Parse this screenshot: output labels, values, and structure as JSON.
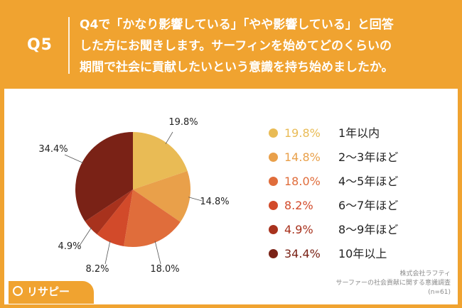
{
  "header": {
    "badge": "Q5",
    "question_lines": [
      "Q4で「かなり影響している」「やや影響している」と回答",
      "した方にお聞きします。サーフィンを始めてどのくらいの",
      "期間で社会に貢献したいという意識を持ち始めましたか。"
    ]
  },
  "chart_data": {
    "type": "pie",
    "start": "12 o'clock, clockwise",
    "slices": [
      {
        "label": "1年以内",
        "value": 19.8,
        "value_label": "19.8%",
        "color": "#e9bb55"
      },
      {
        "label": "2〜3年ほど",
        "value": 14.8,
        "value_label": "14.8%",
        "color": "#e9a04a"
      },
      {
        "label": "4〜5年ほど",
        "value": 18.0,
        "value_label": "18.0%",
        "color": "#e06d3b"
      },
      {
        "label": "6〜7年ほど",
        "value": 8.2,
        "value_label": "8.2%",
        "color": "#d24a2a"
      },
      {
        "label": "8〜9年ほど",
        "value": 4.9,
        "value_label": "4.9%",
        "color": "#a8321d"
      },
      {
        "label": "10年以上",
        "value": 34.4,
        "value_label": "34.4%",
        "color": "#7a2216"
      }
    ],
    "legend": "right"
  },
  "source": {
    "lines": [
      "株式会社ラフティ",
      "サーファーの社会貢献に関する意識調査",
      "(n=61)"
    ]
  },
  "logo": {
    "text": "リサピー"
  }
}
